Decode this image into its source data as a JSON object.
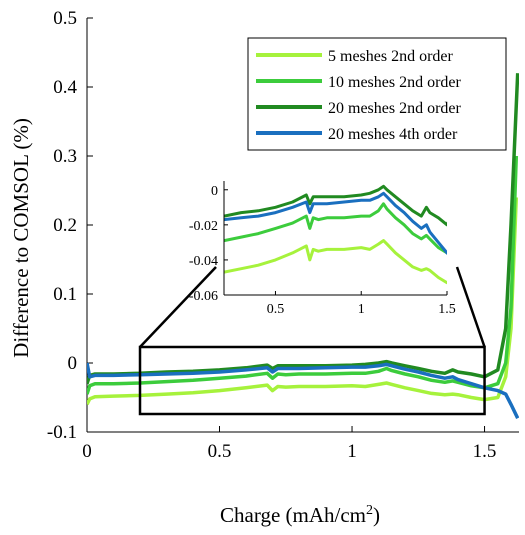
{
  "chart_data": {
    "type": "line",
    "xlabel": "Charge (mAh/cm",
    "xlabel_sup": "2",
    "xlabel_close": ")",
    "ylabel": "Difference to COMSOL (%)",
    "xlim": [
      0,
      1.63
    ],
    "ylim": [
      -0.1,
      0.5
    ],
    "x_ticks": [
      "0",
      "0.5",
      "1",
      "1.5"
    ],
    "y_ticks": [
      "-0.1",
      "0",
      "0.1",
      "0.2",
      "0.3",
      "0.4",
      "0.5"
    ],
    "x_tick_values": [
      0,
      0.5,
      1,
      1.5
    ],
    "y_tick_values": [
      -0.1,
      0,
      0.1,
      0.2,
      0.3,
      0.4,
      0.5
    ],
    "legend_position": "top-right",
    "grid": false,
    "series": [
      {
        "name": "5 meshes 2nd order",
        "color": "#a6f23c",
        "x": [
          0,
          0.01,
          0.03,
          0.1,
          0.2,
          0.3,
          0.4,
          0.5,
          0.6,
          0.68,
          0.7,
          0.72,
          0.75,
          0.8,
          0.9,
          1.0,
          1.05,
          1.1,
          1.13,
          1.15,
          1.2,
          1.25,
          1.3,
          1.35,
          1.38,
          1.4,
          1.45,
          1.5,
          1.55,
          1.58,
          1.6,
          1.62
        ],
        "y": [
          -0.06,
          -0.052,
          -0.049,
          -0.048,
          -0.047,
          -0.045,
          -0.043,
          -0.04,
          -0.036,
          -0.032,
          -0.04,
          -0.034,
          -0.035,
          -0.034,
          -0.034,
          -0.033,
          -0.034,
          -0.031,
          -0.029,
          -0.031,
          -0.036,
          -0.04,
          -0.044,
          -0.046,
          -0.045,
          -0.046,
          -0.05,
          -0.053,
          -0.05,
          -0.02,
          0.05,
          0.24
        ]
      },
      {
        "name": "10 meshes 2nd order",
        "color": "#3ccc3c",
        "x": [
          0,
          0.01,
          0.03,
          0.1,
          0.2,
          0.3,
          0.4,
          0.5,
          0.6,
          0.68,
          0.7,
          0.72,
          0.75,
          0.8,
          0.9,
          1.0,
          1.05,
          1.1,
          1.13,
          1.15,
          1.2,
          1.25,
          1.3,
          1.35,
          1.38,
          1.4,
          1.45,
          1.5,
          1.55,
          1.58,
          1.6,
          1.62
        ],
        "y": [
          -0.045,
          -0.033,
          -0.03,
          -0.03,
          -0.029,
          -0.027,
          -0.025,
          -0.022,
          -0.019,
          -0.015,
          -0.022,
          -0.016,
          -0.017,
          -0.016,
          -0.016,
          -0.015,
          -0.015,
          -0.012,
          -0.008,
          -0.011,
          -0.016,
          -0.02,
          -0.025,
          -0.028,
          -0.026,
          -0.028,
          -0.033,
          -0.036,
          -0.03,
          0.0,
          0.08,
          0.3
        ]
      },
      {
        "name": "20 meshes 2nd order",
        "color": "#218a21",
        "x": [
          0,
          0.01,
          0.03,
          0.1,
          0.2,
          0.3,
          0.4,
          0.5,
          0.6,
          0.68,
          0.7,
          0.72,
          0.75,
          0.8,
          0.9,
          1.0,
          1.05,
          1.1,
          1.13,
          1.15,
          1.2,
          1.25,
          1.3,
          1.35,
          1.38,
          1.4,
          1.45,
          1.5,
          1.55,
          1.58,
          1.6,
          1.625
        ],
        "y": [
          -0.03,
          -0.018,
          -0.016,
          -0.016,
          -0.015,
          -0.013,
          -0.012,
          -0.01,
          -0.007,
          -0.003,
          -0.008,
          -0.004,
          -0.004,
          -0.004,
          -0.004,
          -0.003,
          -0.002,
          0.0,
          0.002,
          0.0,
          -0.004,
          -0.008,
          -0.012,
          -0.015,
          -0.01,
          -0.013,
          -0.016,
          -0.02,
          -0.01,
          0.05,
          0.2,
          0.42
        ]
      },
      {
        "name": "20 meshes 4th order",
        "color": "#1a6fbf",
        "x": [
          0,
          0.01,
          0.03,
          0.1,
          0.2,
          0.3,
          0.4,
          0.5,
          0.6,
          0.68,
          0.7,
          0.72,
          0.75,
          0.8,
          0.9,
          1.0,
          1.05,
          1.1,
          1.13,
          1.15,
          1.2,
          1.25,
          1.3,
          1.35,
          1.38,
          1.4,
          1.45,
          1.5,
          1.55,
          1.58,
          1.6,
          1.625
        ],
        "y": [
          0.0,
          -0.02,
          -0.018,
          -0.018,
          -0.017,
          -0.016,
          -0.015,
          -0.013,
          -0.01,
          -0.007,
          -0.013,
          -0.008,
          -0.008,
          -0.008,
          -0.007,
          -0.006,
          -0.006,
          -0.004,
          -0.002,
          -0.004,
          -0.009,
          -0.013,
          -0.018,
          -0.022,
          -0.02,
          -0.024,
          -0.03,
          -0.036,
          -0.04,
          -0.045,
          -0.06,
          -0.08
        ]
      }
    ],
    "zoom_box": {
      "x": [
        0.2,
        1.5
      ],
      "y": [
        -0.08,
        -0.1
      ]
    },
    "inset": {
      "xlim": [
        0.2,
        1.5
      ],
      "ylim": [
        -0.06,
        0.005
      ],
      "x_ticks": [
        "0.5",
        "1",
        "1.5"
      ],
      "y_ticks": [
        "0",
        "-0.02",
        "-0.04",
        "-0.06"
      ],
      "x_tick_values": [
        0.5,
        1,
        1.5
      ],
      "y_tick_values": [
        0,
        -0.02,
        -0.04,
        -0.06
      ]
    }
  }
}
